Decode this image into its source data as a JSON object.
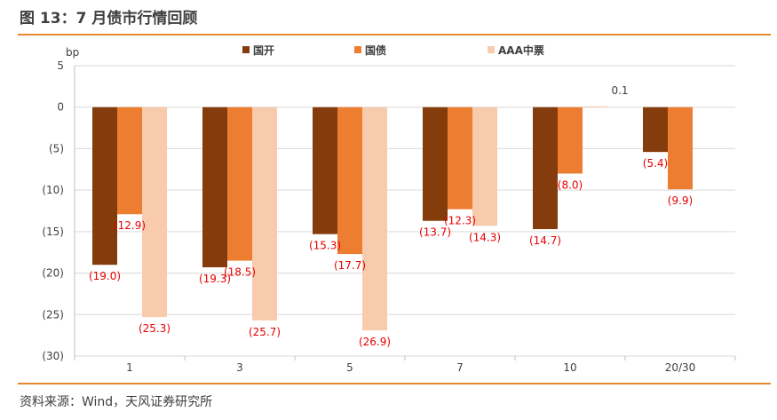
{
  "header": {
    "title": "图 13：7 月债市行情回顾"
  },
  "footer": {
    "source": "资料来源：Wind，天风证券研究所"
  },
  "chart_data": {
    "type": "bar",
    "unit_label": "bp",
    "categories": [
      "1",
      "3",
      "5",
      "7",
      "10",
      "20/30"
    ],
    "series": [
      {
        "name": "国开",
        "color": "#843c0c",
        "values": [
          -19.0,
          -19.3,
          -15.3,
          -13.7,
          -14.7,
          -5.4
        ]
      },
      {
        "name": "国债",
        "color": "#ed7d31",
        "values": [
          -12.9,
          -18.5,
          -17.7,
          -12.3,
          -8.0,
          -9.9
        ]
      },
      {
        "name": "AAA中票",
        "color": "#f8cbad",
        "values": [
          -25.3,
          -25.7,
          -26.9,
          -14.3,
          0.1,
          null
        ]
      }
    ],
    "data_labels": [
      [
        "(19.0)",
        "(19.3)",
        "(15.3)",
        "(13.7)",
        "(14.7)",
        "(5.4)"
      ],
      [
        "(12.9)",
        "(18.5)",
        "(17.7)",
        "(12.3)",
        "(8.0)",
        "(9.9)"
      ],
      [
        "(25.3)",
        "(25.7)",
        "(26.9)",
        "(14.3)",
        "0.1",
        ""
      ]
    ],
    "y_ticks": [
      "5",
      "0",
      "(5)",
      "(10)",
      "(15)",
      "(20)",
      "(25)",
      "(30)"
    ],
    "ylim": [
      -30,
      5
    ],
    "grid": true,
    "legend_position": "top"
  }
}
